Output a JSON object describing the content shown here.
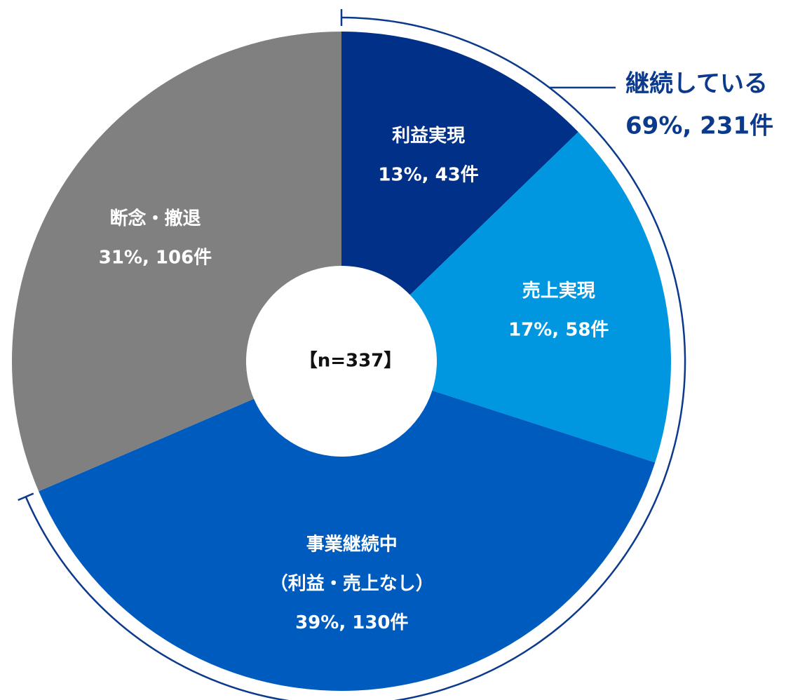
{
  "chart_data": {
    "type": "donut",
    "categories": [
      "利益実現",
      "売上実現",
      "事業継続中\n（利益・売上なし）",
      "断念・撤退"
    ],
    "values": [
      43,
      58,
      130,
      106
    ],
    "value_labels": [
      "13%, 43件",
      "17%, 58件",
      "39%, 130件",
      "31%, 106件"
    ],
    "colors": [
      "#003087",
      "#0096e0",
      "#005bbf",
      "#808080"
    ],
    "center_label": "【n=337】",
    "annotation": {
      "text": "継続している",
      "value": 231,
      "value_label": "69%, 231件",
      "color": "#0b3a8c"
    }
  }
}
